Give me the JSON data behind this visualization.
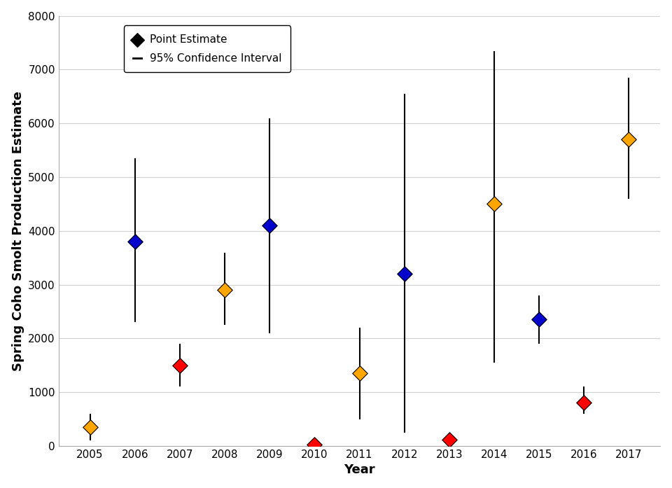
{
  "years": [
    2005,
    2006,
    2007,
    2008,
    2009,
    2010,
    2011,
    2012,
    2013,
    2014,
    2015,
    2016,
    2017
  ],
  "point_estimates": [
    350,
    3800,
    1500,
    2900,
    4100,
    30,
    1350,
    3200,
    110,
    4500,
    2350,
    800,
    5700
  ],
  "ci_lower": [
    100,
    2300,
    1100,
    2250,
    2100,
    0,
    500,
    250,
    50,
    1550,
    1900,
    600,
    4600
  ],
  "ci_upper": [
    600,
    5350,
    1900,
    3600,
    6100,
    80,
    2200,
    6550,
    250,
    7350,
    2800,
    1100,
    6850
  ],
  "colors": [
    "#FFA500",
    "#0000CD",
    "#FF0000",
    "#FFA500",
    "#0000CD",
    "#FF0000",
    "#FFA500",
    "#0000CD",
    "#FF0000",
    "#FFA500",
    "#0000CD",
    "#FF0000",
    "#FFA500"
  ],
  "ylabel": "Spring Coho Smolt Production Estimate",
  "xlabel": "Year",
  "ylim": [
    0,
    8000
  ],
  "yticks": [
    0,
    1000,
    2000,
    3000,
    4000,
    5000,
    6000,
    7000,
    8000
  ],
  "legend_point_label": "Point Estimate",
  "legend_ci_label": "95% Confidence Interval",
  "background_color": "#ffffff",
  "grid_color": "#d0d0d0"
}
